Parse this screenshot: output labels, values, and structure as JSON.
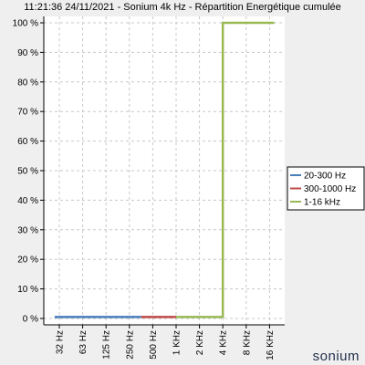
{
  "chart_data": {
    "type": "line",
    "title": "11:21:36 24/11/2021 - Sonium 4k Hz - Répartition Energétique cumulée",
    "categories": [
      "32 Hz",
      "63 Hz",
      "125 Hz",
      "250 Hz",
      "500 Hz",
      "1 KHz",
      "2 KHz",
      "4 KHz",
      "8 KHz",
      "16 KHz"
    ],
    "y_ticks": [
      "0 %",
      "10 %",
      "20 %",
      "30 %",
      "40 %",
      "50 %",
      "60 %",
      "70 %",
      "80 %",
      "90 %",
      "100 %"
    ],
    "ylim": [
      0,
      100
    ],
    "grid": true,
    "legend_position": "right",
    "series": [
      {
        "name": "20-300 Hz",
        "color": "#4a7ebb",
        "points": [
          [
            -0.2,
            0.5
          ],
          [
            3.5,
            0.5
          ]
        ]
      },
      {
        "name": "300-1000 Hz",
        "color": "#be4b48",
        "points": [
          [
            3.5,
            0.5
          ],
          [
            5.0,
            0.5
          ]
        ]
      },
      {
        "name": "1-16 kHz",
        "color": "#98b954",
        "points": [
          [
            5.0,
            0.5
          ],
          [
            7.0,
            0.5
          ],
          [
            7.0,
            100
          ],
          [
            9.2,
            100
          ]
        ]
      }
    ]
  },
  "brand": "sonium"
}
